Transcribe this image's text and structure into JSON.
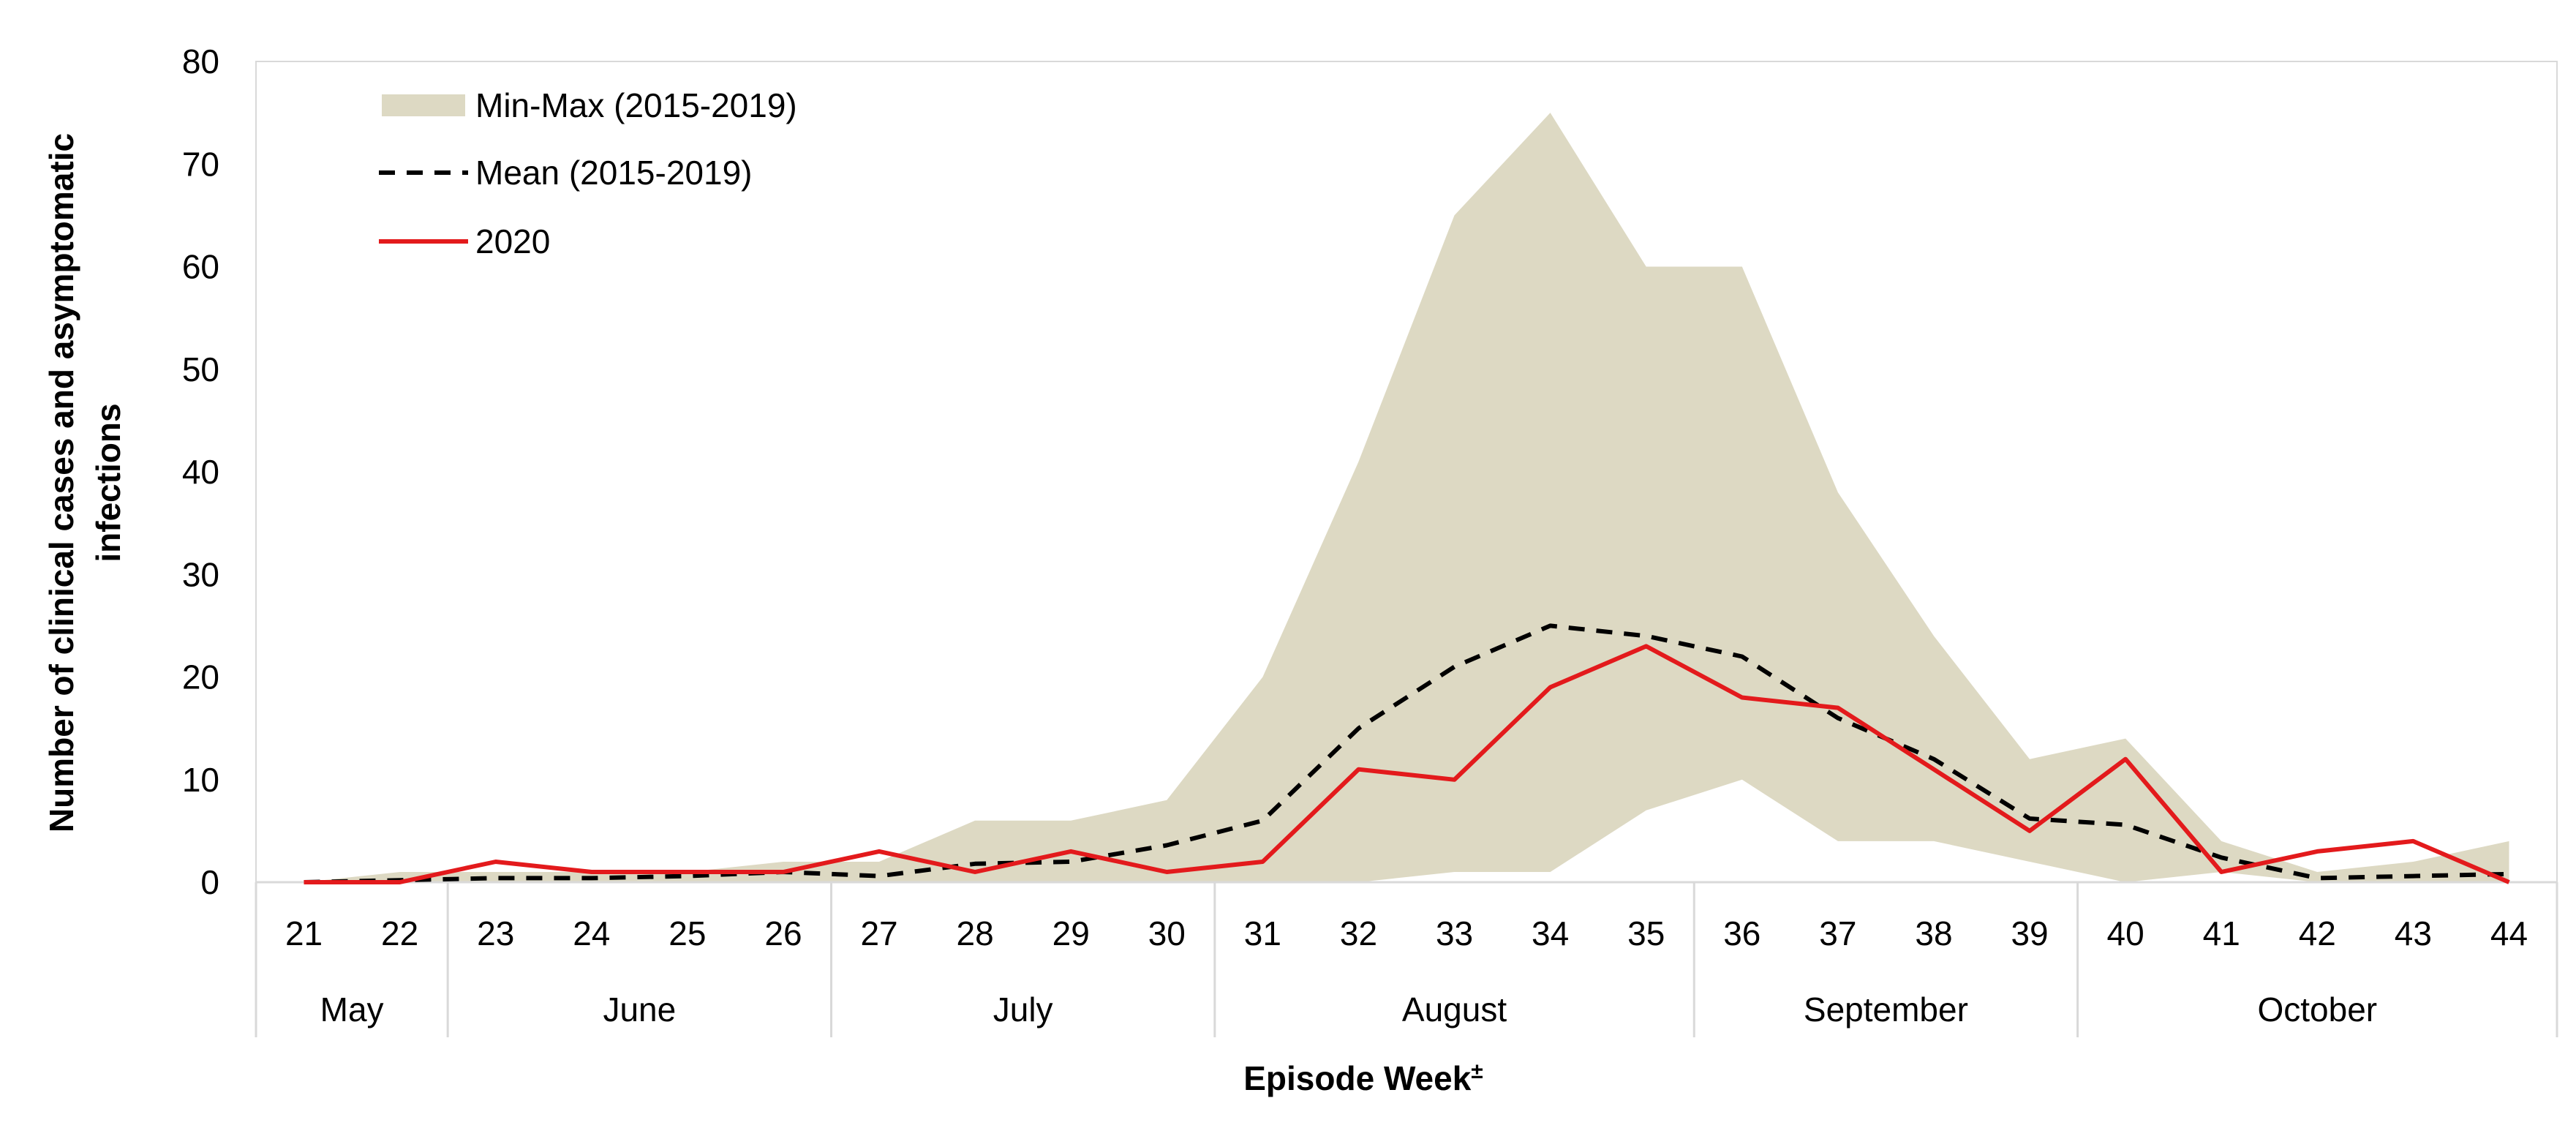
{
  "chart_data": {
    "type": "line",
    "xlabel": "Episode Week",
    "xlabel_superscript": "±",
    "ylabel_lines": [
      "Number of clinical cases and asymptomatic",
      "infections"
    ],
    "ylim": [
      0,
      80
    ],
    "yticks": [
      0,
      10,
      20,
      30,
      40,
      50,
      60,
      70,
      80
    ],
    "grid": false,
    "legend_position": "top-left",
    "categories": [
      "21",
      "22",
      "23",
      "24",
      "25",
      "26",
      "27",
      "28",
      "29",
      "30",
      "31",
      "32",
      "33",
      "34",
      "35",
      "36",
      "37",
      "38",
      "39",
      "40",
      "41",
      "42",
      "43",
      "44"
    ],
    "months": [
      {
        "label": "May",
        "weeks": 2
      },
      {
        "label": "June",
        "weeks": 4
      },
      {
        "label": "July",
        "weeks": 4
      },
      {
        "label": "August",
        "weeks": 5
      },
      {
        "label": "September",
        "weeks": 4
      },
      {
        "label": "October",
        "weeks": 5
      }
    ],
    "band": {
      "name": "Min-Max (2015-2019)",
      "color": "#ddd9c3",
      "min": [
        0,
        0,
        0,
        0,
        0,
        0,
        0,
        0,
        0,
        0,
        0,
        0,
        1,
        1,
        7,
        10,
        4,
        4,
        2,
        0,
        1,
        0,
        0,
        0
      ],
      "max": [
        0,
        1,
        1,
        1,
        1,
        2,
        2,
        6,
        6,
        8,
        20,
        41,
        65,
        75,
        60,
        60,
        38,
        24,
        12,
        14,
        4,
        1,
        2,
        4
      ]
    },
    "series": [
      {
        "name": "Mean (2015-2019)",
        "color": "#000000",
        "dash": true,
        "values": [
          0,
          0.2,
          0.4,
          0.4,
          0.6,
          1.0,
          0.6,
          1.8,
          2.0,
          3.6,
          6.0,
          15.0,
          21.0,
          25.0,
          24.0,
          22.0,
          16.0,
          12.0,
          6.2,
          5.6,
          2.4,
          0.4,
          0.6,
          0.8
        ]
      },
      {
        "name": "2020",
        "color": "#e31a1c",
        "dash": false,
        "values": [
          0,
          0,
          2,
          1,
          1,
          1,
          3,
          1,
          3,
          1,
          2,
          11,
          10,
          19,
          23,
          18,
          17,
          11,
          5,
          12,
          1,
          3,
          4,
          0
        ]
      }
    ]
  }
}
